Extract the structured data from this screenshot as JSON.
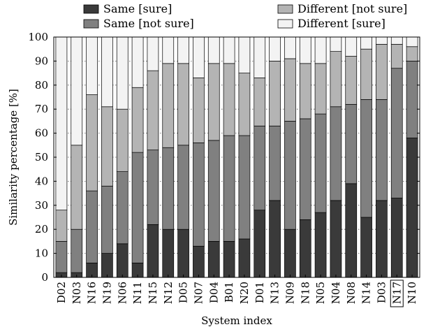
{
  "chart_data": {
    "type": "bar",
    "stacked": true,
    "xlabel": "System index",
    "ylabel": "Similarity percentage [%]",
    "ylim": [
      0,
      100
    ],
    "yticks": [
      0,
      10,
      20,
      30,
      40,
      50,
      60,
      70,
      80,
      90,
      100
    ],
    "grid": "horizontal dotted",
    "legend_position": "top",
    "highlighted_category": "N17",
    "categories": [
      "D02",
      "N03",
      "N16",
      "N19",
      "N06",
      "N11",
      "N15",
      "N12",
      "D05",
      "N07",
      "D04",
      "B01",
      "N20",
      "D01",
      "N13",
      "N09",
      "N18",
      "N05",
      "N04",
      "N08",
      "N14",
      "D03",
      "N17",
      "N10"
    ],
    "series": [
      {
        "name": "Same [sure]",
        "color": "#3a3a3a",
        "values": [
          2,
          2,
          6,
          10,
          14,
          6,
          22,
          20,
          20,
          13,
          15,
          15,
          16,
          28,
          32,
          20,
          24,
          27,
          32,
          39,
          25,
          32,
          33,
          58
        ]
      },
      {
        "name": "Same [not sure]",
        "color": "#808080",
        "values": [
          13,
          18,
          30,
          28,
          30,
          46,
          31,
          34,
          35,
          43,
          42,
          44,
          43,
          35,
          31,
          45,
          42,
          41,
          39,
          33,
          49,
          42,
          54,
          32
        ]
      },
      {
        "name": "Different [not sure]",
        "color": "#b4b4b4",
        "values": [
          13,
          35,
          40,
          33,
          26,
          27,
          33,
          35,
          34,
          27,
          32,
          30,
          26,
          20,
          27,
          26,
          23,
          21,
          23,
          20,
          21,
          23,
          10,
          6
        ]
      },
      {
        "name": "Different [sure]",
        "color": "#f3f3f3",
        "values": [
          72,
          45,
          24,
          29,
          30,
          21,
          14,
          11,
          11,
          17,
          11,
          11,
          15,
          17,
          10,
          9,
          11,
          11,
          6,
          8,
          5,
          3,
          3,
          4
        ]
      }
    ]
  }
}
